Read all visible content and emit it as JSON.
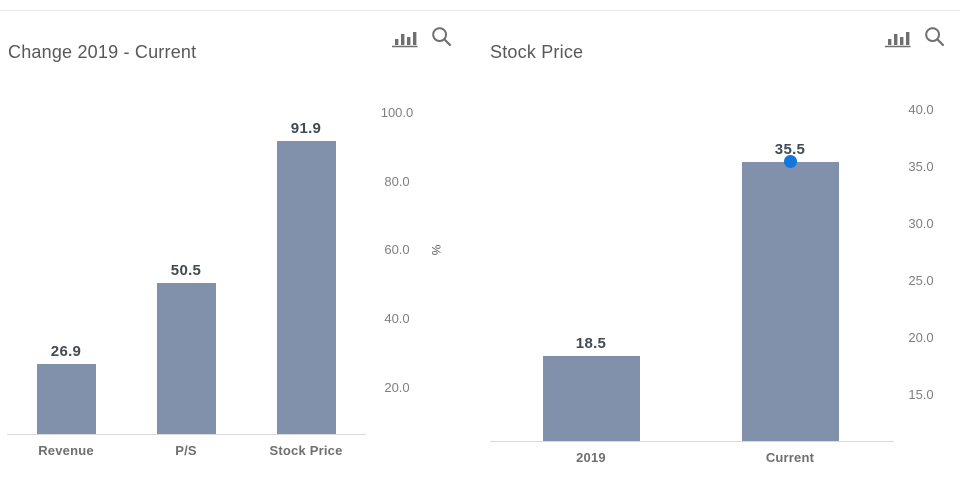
{
  "page": {
    "background": "#ffffff",
    "top_rule_color": "#ece8e8"
  },
  "toolbar": {
    "chart_type_icon": "bar-chart-icon",
    "zoom_icon": "search-icon",
    "icon_color": "#6f6f6f"
  },
  "colors": {
    "bar_fill": "#8191ac",
    "marker_blue": "#1377dd",
    "axis_line": "#d9d9d9",
    "value_label": "#424a52",
    "category_label": "#6f6f6f",
    "tick_label": "#7f7f7f",
    "title": "#585858"
  },
  "chart_data": [
    {
      "type": "bar",
      "title": "Change 2019 - Current",
      "categories": [
        "Revenue",
        "P/S",
        "Stock Price"
      ],
      "values": [
        26.9,
        50.5,
        91.9
      ],
      "data_labels": [
        "26.9",
        "50.5",
        "91.9"
      ],
      "yticks": [
        20,
        40,
        60,
        80,
        100
      ],
      "ytick_labels": [
        "20.0",
        "40.0",
        "60.0",
        "80.0",
        "100.0"
      ],
      "ylabel": "%",
      "ylim": [
        6.6,
        105
      ],
      "yaxis_position": "right",
      "grid": false,
      "legend": "none",
      "bar_color": "#8191ac"
    },
    {
      "type": "bar",
      "title": "Stock Price",
      "categories": [
        "2019",
        "Current"
      ],
      "values": [
        18.5,
        35.5
      ],
      "data_labels": [
        "18.5",
        "35.5"
      ],
      "yticks": [
        15,
        20,
        25,
        30,
        35,
        40
      ],
      "ytick_labels": [
        "15.0",
        "20.0",
        "25.0",
        "30.0",
        "35.0",
        "40.0"
      ],
      "ylabel": "",
      "ylim": [
        11,
        40.6
      ],
      "yaxis_position": "right",
      "grid": false,
      "legend": "none",
      "bar_color": "#8191ac",
      "marker": {
        "on_category": "Current",
        "value": 35.5,
        "color": "#1377dd"
      }
    }
  ]
}
